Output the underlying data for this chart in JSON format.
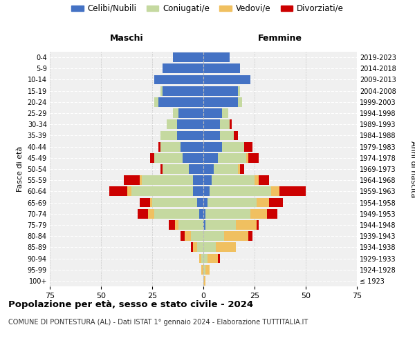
{
  "age_groups": [
    "100+",
    "95-99",
    "90-94",
    "85-89",
    "80-84",
    "75-79",
    "70-74",
    "65-69",
    "60-64",
    "55-59",
    "50-54",
    "45-49",
    "40-44",
    "35-39",
    "30-34",
    "25-29",
    "20-24",
    "15-19",
    "10-14",
    "5-9",
    "0-4"
  ],
  "birth_years": [
    "≤ 1923",
    "1924-1928",
    "1929-1933",
    "1934-1938",
    "1939-1943",
    "1944-1948",
    "1949-1953",
    "1954-1958",
    "1959-1963",
    "1964-1968",
    "1969-1973",
    "1974-1978",
    "1979-1983",
    "1984-1988",
    "1989-1993",
    "1994-1998",
    "1999-2003",
    "2004-2008",
    "2009-2013",
    "2014-2018",
    "2019-2023"
  ],
  "colors": {
    "celibi": "#4472c4",
    "coniugati": "#c5d9a0",
    "vedovi": "#f0c060",
    "divorziati": "#cc0000"
  },
  "maschi": {
    "celibi": [
      0,
      0,
      0,
      0,
      0,
      0,
      2,
      3,
      5,
      5,
      7,
      10,
      11,
      13,
      13,
      12,
      22,
      20,
      24,
      20,
      15
    ],
    "coniugati": [
      0,
      0,
      1,
      3,
      6,
      12,
      22,
      22,
      30,
      25,
      13,
      14,
      10,
      8,
      5,
      3,
      2,
      1,
      0,
      0,
      0
    ],
    "vedovi": [
      0,
      1,
      1,
      2,
      3,
      2,
      3,
      1,
      2,
      1,
      0,
      0,
      0,
      0,
      0,
      0,
      0,
      0,
      0,
      0,
      0
    ],
    "divorziati": [
      0,
      0,
      0,
      1,
      2,
      3,
      5,
      5,
      9,
      8,
      1,
      2,
      1,
      0,
      0,
      0,
      0,
      0,
      0,
      0,
      0
    ]
  },
  "femmine": {
    "nubili": [
      0,
      0,
      0,
      0,
      0,
      1,
      1,
      2,
      3,
      4,
      5,
      7,
      9,
      8,
      8,
      9,
      17,
      17,
      23,
      18,
      13
    ],
    "coniugate": [
      0,
      1,
      2,
      6,
      10,
      15,
      22,
      24,
      30,
      21,
      12,
      14,
      11,
      7,
      5,
      3,
      2,
      1,
      0,
      0,
      0
    ],
    "vedove": [
      1,
      2,
      5,
      10,
      12,
      10,
      8,
      6,
      4,
      2,
      1,
      1,
      0,
      0,
      0,
      0,
      0,
      0,
      0,
      0,
      0
    ],
    "divorziate": [
      0,
      0,
      1,
      0,
      2,
      1,
      5,
      7,
      13,
      5,
      2,
      5,
      4,
      2,
      1,
      0,
      0,
      0,
      0,
      0,
      0
    ]
  },
  "xlim": 75,
  "title": "Popolazione per età, sesso e stato civile - 2024",
  "subtitle": "COMUNE DI PONTESTURA (AL) - Dati ISTAT 1° gennaio 2024 - Elaborazione TUTTITALIA.IT",
  "ylabel": "Fasce di età",
  "ylabel_right": "Anni di nascita",
  "legend_labels": [
    "Celibi/Nubili",
    "Coniugati/e",
    "Vedovi/e",
    "Divorziati/e"
  ],
  "maschi_label": "Maschi",
  "femmine_label": "Femmine",
  "bg_color": "#f0f0f0"
}
